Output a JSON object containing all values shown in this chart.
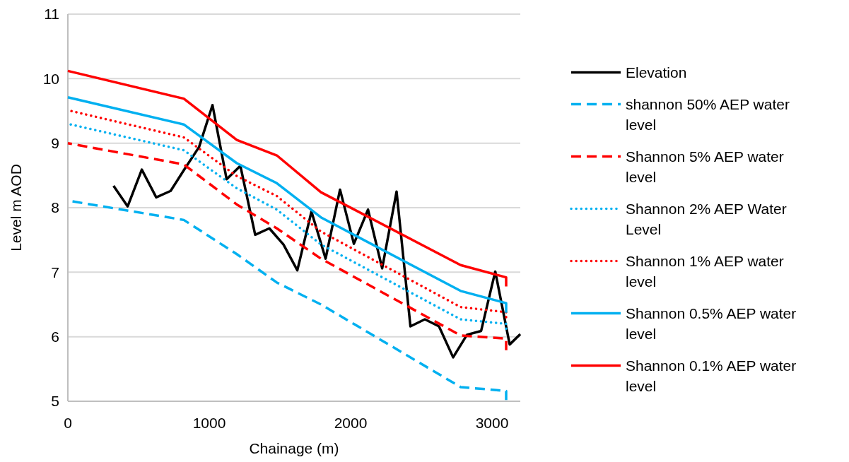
{
  "chart_data": {
    "type": "line",
    "xlabel": "Chainage (m)",
    "ylabel": "Level m AOD",
    "xlim": [
      0,
      3200
    ],
    "xticks": [
      0,
      1000,
      2000,
      3000
    ],
    "ylim": [
      5,
      11
    ],
    "yticks": [
      5,
      6,
      7,
      8,
      9,
      10,
      11
    ],
    "grid": "y",
    "legend": "right",
    "marker": "none",
    "series": [
      {
        "name": "Elevation",
        "color": "#000000",
        "line_style": "solid",
        "x": [
          323,
          423,
          523,
          625,
          727,
          820,
          928,
          1023,
          1123,
          1220,
          1325,
          1425,
          1525,
          1623,
          1723,
          1823,
          1925,
          2023,
          2123,
          2223,
          2325,
          2423,
          2525,
          2625,
          2725,
          2823,
          2923,
          3023,
          3125,
          3200
        ],
        "values": [
          8.34,
          8.02,
          8.59,
          8.16,
          8.26,
          8.58,
          8.94,
          9.59,
          8.44,
          8.65,
          7.58,
          7.68,
          7.43,
          7.03,
          7.94,
          7.21,
          8.28,
          7.44,
          7.97,
          7.06,
          8.25,
          6.16,
          6.27,
          6.16,
          5.68,
          6.03,
          6.09,
          7.01,
          5.88,
          6.04
        ]
      },
      {
        "name": "shannon 50% AEP water level",
        "color": "#00b0f0",
        "line_style": "dashed",
        "x": [
          0,
          820,
          1195,
          1478,
          1790,
          2778,
          3100,
          3100
        ],
        "values": [
          8.11,
          7.81,
          7.28,
          6.84,
          6.5,
          5.22,
          5.16,
          5.02
        ]
      },
      {
        "name": "Shannon 5% AEP water level",
        "color": "#ff0000",
        "line_style": "dashed",
        "x": [
          0,
          820,
          1195,
          1478,
          1790,
          2778,
          3100,
          3100
        ],
        "values": [
          9.0,
          8.67,
          8.05,
          7.68,
          7.21,
          6.02,
          5.97,
          5.79
        ]
      },
      {
        "name": "Shannon 2% AEP Water Level",
        "color": "#00b0f0",
        "line_style": "dotted",
        "x": [
          0,
          820,
          1195,
          1478,
          1790,
          2778,
          3100,
          3100
        ],
        "values": [
          9.3,
          8.89,
          8.3,
          7.97,
          7.43,
          6.27,
          6.2,
          6.08
        ]
      },
      {
        "name": "Shannon 1% AEP water level",
        "color": "#ff0000",
        "line_style": "dotted",
        "x": [
          0,
          820,
          1195,
          1478,
          1790,
          2778,
          3100,
          3100
        ],
        "values": [
          9.51,
          9.09,
          8.49,
          8.18,
          7.63,
          6.46,
          6.38,
          6.26
        ]
      },
      {
        "name": "Shannon 0.5% AEP water level",
        "color": "#00b0f0",
        "line_style": "solid",
        "x": [
          0,
          820,
          1195,
          1478,
          1790,
          2778,
          3100,
          3100
        ],
        "values": [
          9.71,
          9.29,
          8.69,
          8.38,
          7.85,
          6.71,
          6.52,
          6.37
        ]
      },
      {
        "name": "Shannon 0.1% AEP water level",
        "color": "#ff0000",
        "line_style": "solid",
        "x": [
          0,
          820,
          1195,
          1478,
          1790,
          2778,
          3100,
          3100
        ],
        "values": [
          10.12,
          9.69,
          9.05,
          8.81,
          8.24,
          7.11,
          6.92,
          6.78
        ]
      }
    ]
  }
}
